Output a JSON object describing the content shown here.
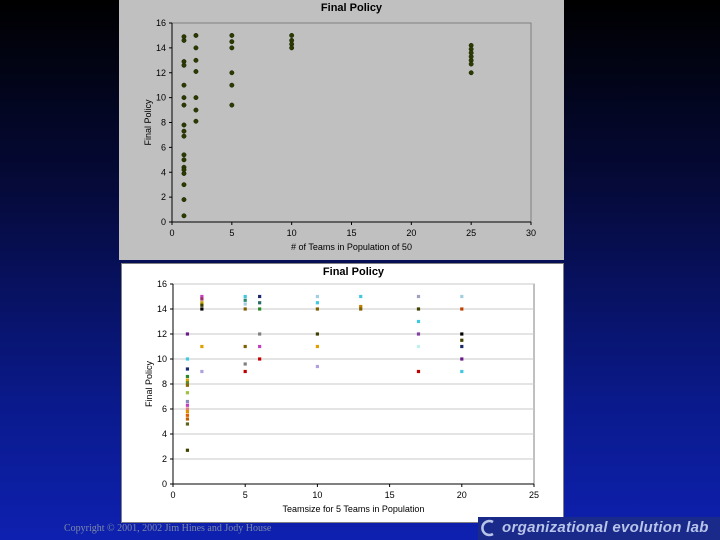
{
  "footer": {
    "copyright": "Copyright © 2001, 2002 Jim Hines and Jody House",
    "brand": "organizational evolution lab"
  },
  "chart_data": [
    {
      "type": "scatter",
      "title": "Final Policy",
      "xlabel": "# of Teams in Population of 50",
      "ylabel": "Final Policy",
      "xlim": [
        0,
        30
      ],
      "ylim": [
        0,
        16
      ],
      "xticks": [
        0,
        5,
        10,
        15,
        20,
        25,
        30
      ],
      "yticks": [
        0,
        2,
        4,
        6,
        8,
        10,
        12,
        14,
        16
      ],
      "grid": false,
      "colors": {
        "plot_bg": "#c0c0c0",
        "point": "#2a3a00"
      },
      "series": [
        {
          "points": [
            [
              1,
              14.9
            ],
            [
              1,
              14.6
            ],
            [
              1,
              12.9
            ],
            [
              1,
              12.6
            ],
            [
              1,
              11.0
            ],
            [
              1,
              10.0
            ],
            [
              1,
              9.4
            ],
            [
              1,
              7.8
            ],
            [
              1,
              7.3
            ],
            [
              1,
              6.9
            ],
            [
              1,
              5.4
            ],
            [
              1,
              5.0
            ],
            [
              1,
              4.4
            ],
            [
              1,
              4.2
            ],
            [
              1,
              3.9
            ],
            [
              1,
              3.0
            ],
            [
              1,
              1.8
            ],
            [
              1,
              0.5
            ],
            [
              2,
              15.0
            ],
            [
              2,
              14.0
            ],
            [
              2,
              13.0
            ],
            [
              2,
              12.1
            ],
            [
              2,
              10.0
            ],
            [
              2,
              9.0
            ],
            [
              2,
              8.1
            ],
            [
              5,
              15.0
            ],
            [
              5,
              14.5
            ],
            [
              5,
              14.0
            ],
            [
              5,
              12.0
            ],
            [
              5,
              11.0
            ],
            [
              5,
              9.4
            ],
            [
              10,
              15.0
            ],
            [
              10,
              14.6
            ],
            [
              10,
              14.3
            ],
            [
              10,
              14.0
            ],
            [
              25,
              14.2
            ],
            [
              25,
              13.9
            ],
            [
              25,
              13.6
            ],
            [
              25,
              13.3
            ],
            [
              25,
              13.0
            ],
            [
              25,
              12.7
            ],
            [
              25,
              12.0
            ]
          ]
        }
      ]
    },
    {
      "type": "scatter",
      "title": "Final Policy",
      "xlabel": "Teamsize for 5 Teams in Population",
      "ylabel": "Final Policy",
      "xlim": [
        0,
        25
      ],
      "ylim": [
        0,
        16
      ],
      "xticks": [
        0,
        5,
        10,
        15,
        20,
        25
      ],
      "yticks": [
        0,
        2,
        4,
        6,
        8,
        10,
        12,
        14,
        16
      ],
      "grid": true,
      "colors": {
        "plot_bg": "#ffffff",
        "grid": "#c8c8c8"
      },
      "points": [
        {
          "x": 1,
          "y": 12.0,
          "color": "#6a1a8a"
        },
        {
          "x": 1,
          "y": 10.0,
          "color": "#40c8e0"
        },
        {
          "x": 1,
          "y": 9.2,
          "color": "#1a2a6a"
        },
        {
          "x": 1,
          "y": 8.6,
          "color": "#2a8a2a"
        },
        {
          "x": 1,
          "y": 8.3,
          "color": "#e0a000"
        },
        {
          "x": 1,
          "y": 8.1,
          "color": "#5a8a2a"
        },
        {
          "x": 1,
          "y": 7.9,
          "color": "#8a6a00"
        },
        {
          "x": 1,
          "y": 7.3,
          "color": "#a0c040"
        },
        {
          "x": 1,
          "y": 6.6,
          "color": "#8a8ac0"
        },
        {
          "x": 1,
          "y": 6.3,
          "color": "#c040c0"
        },
        {
          "x": 1,
          "y": 6.0,
          "color": "#e08080"
        },
        {
          "x": 1,
          "y": 5.8,
          "color": "#e09000"
        },
        {
          "x": 1,
          "y": 5.5,
          "color": "#e06000"
        },
        {
          "x": 1,
          "y": 5.2,
          "color": "#c06000"
        },
        {
          "x": 1,
          "y": 4.8,
          "color": "#606020"
        },
        {
          "x": 1,
          "y": 2.7,
          "color": "#404000"
        },
        {
          "x": 2,
          "y": 15.0,
          "color": "#c040c0"
        },
        {
          "x": 2,
          "y": 14.8,
          "color": "#a03060"
        },
        {
          "x": 2,
          "y": 14.5,
          "color": "#c0a000"
        },
        {
          "x": 2,
          "y": 14.3,
          "color": "#404000"
        },
        {
          "x": 2,
          "y": 14.0,
          "color": "#000000"
        },
        {
          "x": 2,
          "y": 11.0,
          "color": "#e0a000"
        },
        {
          "x": 2,
          "y": 9.0,
          "color": "#b0a0e0"
        },
        {
          "x": 5,
          "y": 15.0,
          "color": "#40c8e0"
        },
        {
          "x": 5,
          "y": 14.7,
          "color": "#2a8a6a"
        },
        {
          "x": 5,
          "y": 14.4,
          "color": "#a0d0e0"
        },
        {
          "x": 5,
          "y": 14.0,
          "color": "#806000"
        },
        {
          "x": 5,
          "y": 11.0,
          "color": "#806000"
        },
        {
          "x": 5,
          "y": 9.6,
          "color": "#808080"
        },
        {
          "x": 5,
          "y": 9.0,
          "color": "#c00000"
        },
        {
          "x": 6,
          "y": 15.0,
          "color": "#1a2a6a"
        },
        {
          "x": 6,
          "y": 14.5,
          "color": "#2a6a6a"
        },
        {
          "x": 6,
          "y": 14.0,
          "color": "#2a8a2a"
        },
        {
          "x": 6,
          "y": 12.0,
          "color": "#808080"
        },
        {
          "x": 6,
          "y": 11.0,
          "color": "#c040c0"
        },
        {
          "x": 6,
          "y": 10.0,
          "color": "#c00000"
        },
        {
          "x": 10,
          "y": 15.0,
          "color": "#a0d0e0"
        },
        {
          "x": 10,
          "y": 14.5,
          "color": "#40c8e0"
        },
        {
          "x": 10,
          "y": 14.0,
          "color": "#806000"
        },
        {
          "x": 10,
          "y": 12.0,
          "color": "#404000"
        },
        {
          "x": 10,
          "y": 11.0,
          "color": "#e0a000"
        },
        {
          "x": 10,
          "y": 9.4,
          "color": "#b0a0e0"
        },
        {
          "x": 13,
          "y": 15.0,
          "color": "#40c8e0"
        },
        {
          "x": 13,
          "y": 14.2,
          "color": "#c08000"
        },
        {
          "x": 13,
          "y": 14.0,
          "color": "#806000"
        },
        {
          "x": 17,
          "y": 15.0,
          "color": "#a0a0c0"
        },
        {
          "x": 17,
          "y": 14.0,
          "color": "#404000"
        },
        {
          "x": 17,
          "y": 13.0,
          "color": "#40c8e0"
        },
        {
          "x": 17,
          "y": 12.0,
          "color": "#8040a0"
        },
        {
          "x": 17,
          "y": 11.0,
          "color": "#c0f0f0"
        },
        {
          "x": 17,
          "y": 9.0,
          "color": "#c00000"
        },
        {
          "x": 20,
          "y": 15.0,
          "color": "#a0d0e0"
        },
        {
          "x": 20,
          "y": 14.0,
          "color": "#c04000"
        },
        {
          "x": 20,
          "y": 12.0,
          "color": "#000000"
        },
        {
          "x": 20,
          "y": 11.5,
          "color": "#404000"
        },
        {
          "x": 20,
          "y": 11.0,
          "color": "#1a2a6a"
        },
        {
          "x": 20,
          "y": 10.0,
          "color": "#6a1a8a"
        },
        {
          "x": 20,
          "y": 9.0,
          "color": "#40c8e0"
        }
      ]
    }
  ]
}
